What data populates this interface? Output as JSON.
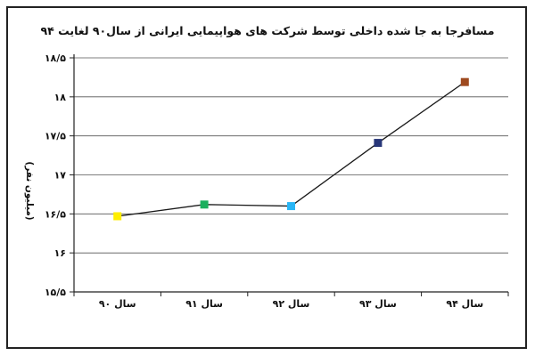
{
  "chart_data": {
    "type": "line",
    "title": "مسافرجا به جا شده داخلی توسط شرکت های هواپیمایی ایرانی از سال۹۰ لغایت ۹۴",
    "ylabel": "(میلیون نفر)",
    "xlabel": "",
    "categories": [
      "سال ۹۰",
      "سال ۹۱",
      "سال ۹۲",
      "سال ۹۳",
      "سال ۹۴"
    ],
    "y_tick_values": [
      15.5,
      16,
      16.5,
      17,
      17.5,
      18,
      18.5
    ],
    "y_tick_labels": [
      "۱۵/۵",
      "۱۶",
      "۱۶/۵",
      "۱۷",
      "۱۷/۵",
      "۱۸",
      "۱۸/۵"
    ],
    "ylim": [
      15.5,
      18.5
    ],
    "grid": true,
    "legend": "none",
    "series": [
      {
        "values": [
          16.47,
          16.62,
          16.6,
          17.41,
          18.19
        ],
        "line_color": "#1a1a1a",
        "marker_colors": [
          "#ffee00",
          "#1aaf5d",
          "#29b6f6",
          "#283779",
          "#9e4a1f"
        ]
      }
    ]
  }
}
